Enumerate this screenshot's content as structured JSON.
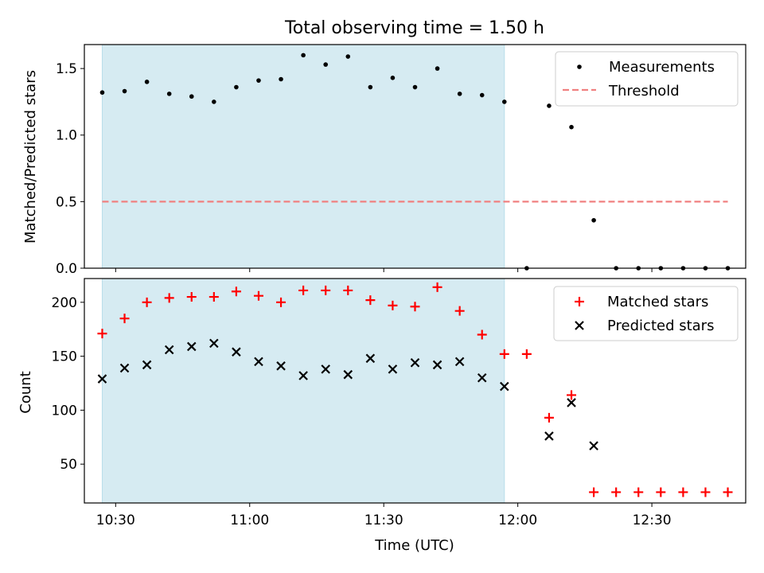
{
  "chart_data": [
    {
      "type": "scatter",
      "title": "Total observing time = 1.50 h",
      "xlabel": "",
      "ylabel": "Matched/Predicted stars",
      "ylim": [
        0,
        1.68
      ],
      "yticks": [
        0.0,
        0.5,
        1.0,
        1.5
      ],
      "ytick_labels": [
        "0.0",
        "0.5",
        "1.0",
        "1.5"
      ],
      "shaded_span": [
        "10:27",
        "11:57"
      ],
      "legend_position": "top-right",
      "series": [
        {
          "name": "Measurements",
          "marker": "dot",
          "color": "#000000",
          "x": [
            "10:27",
            "10:32",
            "10:37",
            "10:42",
            "10:47",
            "10:52",
            "10:57",
            "11:02",
            "11:07",
            "11:12",
            "11:17",
            "11:22",
            "11:27",
            "11:32",
            "11:37",
            "11:42",
            "11:47",
            "11:52",
            "11:57",
            "12:02",
            "12:07",
            "12:12",
            "12:17",
            "12:22",
            "12:27",
            "12:32",
            "12:37",
            "12:42",
            "12:47"
          ],
          "y": [
            1.32,
            1.33,
            1.4,
            1.31,
            1.29,
            1.25,
            1.36,
            1.41,
            1.42,
            1.6,
            1.53,
            1.59,
            1.36,
            1.43,
            1.36,
            1.5,
            1.31,
            1.3,
            1.25,
            0.0,
            1.22,
            1.06,
            0.36,
            0.0,
            0.0,
            0.0,
            0.0,
            0.0,
            0.0
          ]
        },
        {
          "name": "Threshold",
          "marker": "dashed-line",
          "color": "#f08080",
          "x": [
            "10:27",
            "12:47"
          ],
          "y": [
            0.5,
            0.5
          ]
        }
      ]
    },
    {
      "type": "scatter",
      "xlabel": "Time (UTC)",
      "ylabel": "Count",
      "ylim": [
        14,
        222
      ],
      "yticks": [
        50,
        100,
        150,
        200
      ],
      "ytick_labels": [
        "50",
        "100",
        "150",
        "200"
      ],
      "xticks": [
        "10:30",
        "11:00",
        "11:30",
        "12:00",
        "12:30"
      ],
      "xtick_labels": [
        "10:30",
        "11:00",
        "11:30",
        "12:00",
        "12:30"
      ],
      "shaded_span": [
        "10:27",
        "11:57"
      ],
      "legend_position": "top-right",
      "series": [
        {
          "name": "Matched stars",
          "marker": "plus",
          "color": "#ff0000",
          "x": [
            "10:27",
            "10:32",
            "10:37",
            "10:42",
            "10:47",
            "10:52",
            "10:57",
            "11:02",
            "11:07",
            "11:12",
            "11:17",
            "11:22",
            "11:27",
            "11:32",
            "11:37",
            "11:42",
            "11:47",
            "11:52",
            "11:57",
            "12:02",
            "12:07",
            "12:12",
            "12:17",
            "12:22",
            "12:27",
            "12:32",
            "12:37",
            "12:42",
            "12:47"
          ],
          "y": [
            171,
            185,
            200,
            204,
            205,
            205,
            210,
            206,
            200,
            211,
            211,
            211,
            202,
            197,
            196,
            214,
            192,
            170,
            152,
            152,
            93,
            114,
            24,
            24,
            24,
            24,
            24,
            24,
            24
          ]
        },
        {
          "name": "Predicted stars",
          "marker": "x",
          "color": "#000000",
          "x": [
            "10:27",
            "10:32",
            "10:37",
            "10:42",
            "10:47",
            "10:52",
            "10:57",
            "11:02",
            "11:07",
            "11:12",
            "11:17",
            "11:22",
            "11:27",
            "11:32",
            "11:37",
            "11:42",
            "11:47",
            "11:52",
            "11:57",
            "12:07",
            "12:12",
            "12:17"
          ],
          "y": [
            129,
            139,
            142,
            156,
            159,
            162,
            154,
            145,
            141,
            132,
            138,
            133,
            148,
            138,
            144,
            142,
            145,
            130,
            122,
            76,
            107,
            67
          ]
        }
      ]
    }
  ],
  "style": {
    "shade_color": "#add8e6",
    "axis_color": "#000000",
    "threshold_color": "#f08080",
    "matched_color": "#ff0000",
    "predicted_color": "#000000"
  }
}
